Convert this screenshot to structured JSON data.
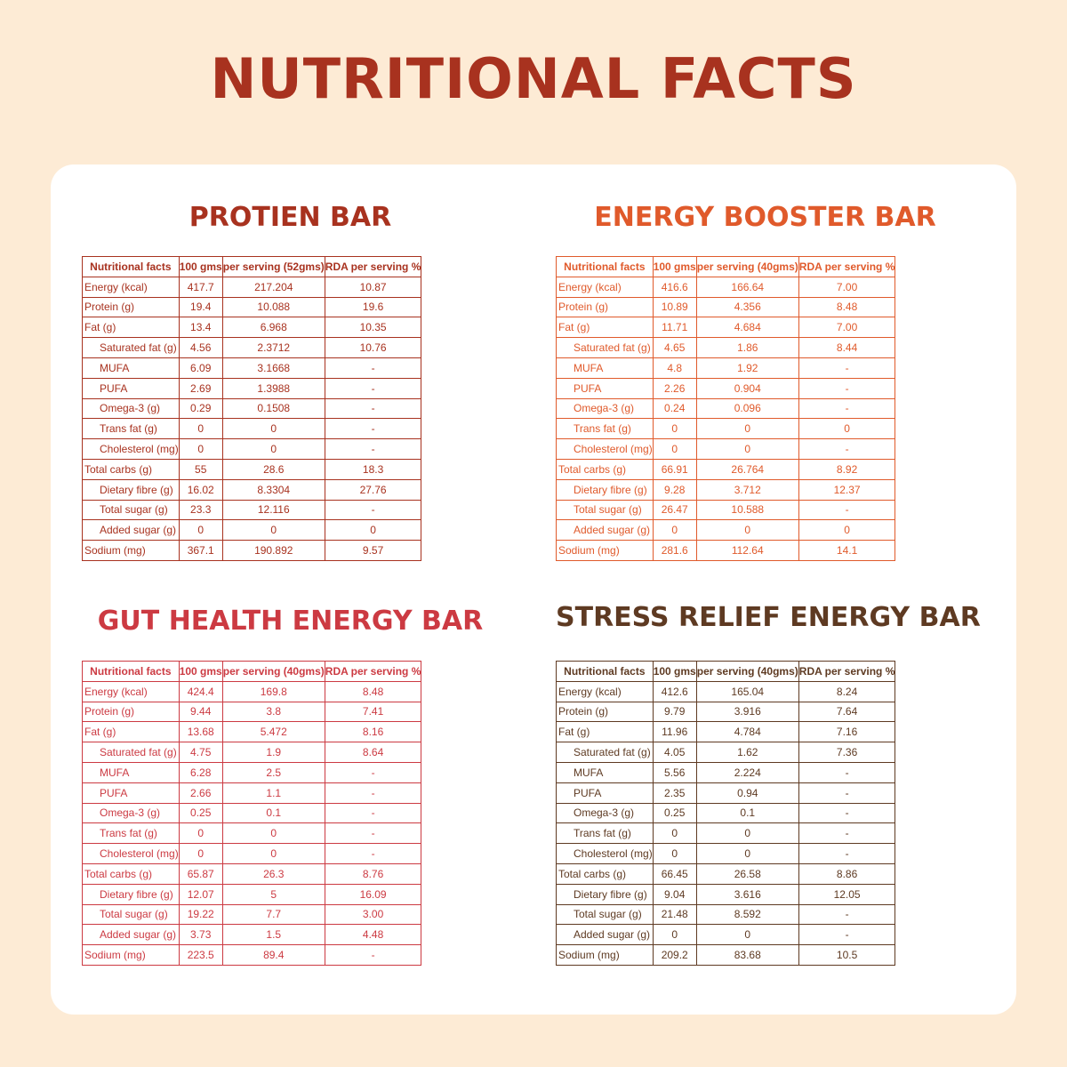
{
  "title": "NUTRITIONAL FACTS",
  "headers": [
    "Nutritional facts",
    "100 gms"
  ],
  "panels": [
    {
      "key": "protein",
      "title": "PROTIEN BAR",
      "color": "#a8321f",
      "serving_header": "per serving (52gms)",
      "rda_header": "RDA per serving %",
      "rows": [
        [
          "Energy (kcal)",
          "417.7",
          "217.204",
          "10.87",
          false
        ],
        [
          "Protein (g)",
          "19.4",
          "10.088",
          "19.6",
          false
        ],
        [
          "Fat (g)",
          "13.4",
          "6.968",
          "10.35",
          false
        ],
        [
          "Saturated fat (g)",
          "4.56",
          "2.3712",
          "10.76",
          true
        ],
        [
          "MUFA",
          "6.09",
          "3.1668",
          "-",
          true
        ],
        [
          "PUFA",
          "2.69",
          "1.3988",
          "-",
          true
        ],
        [
          "Omega-3 (g)",
          "0.29",
          "0.1508",
          "-",
          true
        ],
        [
          "Trans fat (g)",
          "0",
          "0",
          "-",
          true
        ],
        [
          "Cholesterol (mg)",
          "0",
          "0",
          "-",
          true
        ],
        [
          "Total carbs (g)",
          "55",
          "28.6",
          "18.3",
          false
        ],
        [
          "Dietary fibre (g)",
          "16.02",
          "8.3304",
          "27.76",
          true
        ],
        [
          "Total sugar (g)",
          "23.3",
          "12.116",
          "-",
          true
        ],
        [
          "Added sugar (g)",
          "0",
          "0",
          "0",
          true
        ],
        [
          "Sodium (mg)",
          "367.1",
          "190.892",
          "9.57",
          false
        ]
      ]
    },
    {
      "key": "energy",
      "title": "ENERGY BOOSTER BAR",
      "color": "#e05a2b",
      "serving_header": "per serving (40gms)",
      "rda_header": "RDA per serving %",
      "rows": [
        [
          "Energy (kcal)",
          "416.6",
          "166.64",
          "7.00",
          false
        ],
        [
          "Protein (g)",
          "10.89",
          "4.356",
          "8.48",
          false
        ],
        [
          "Fat (g)",
          "11.71",
          "4.684",
          "7.00",
          false
        ],
        [
          "Saturated fat (g)",
          "4.65",
          "1.86",
          "8.44",
          true
        ],
        [
          "MUFA",
          "4.8",
          "1.92",
          "-",
          true
        ],
        [
          "PUFA",
          "2.26",
          "0.904",
          "-",
          true
        ],
        [
          "Omega-3 (g)",
          "0.24",
          "0.096",
          "-",
          true
        ],
        [
          "Trans fat (g)",
          "0",
          "0",
          "0",
          true
        ],
        [
          "Cholesterol (mg)",
          "0",
          "0",
          "-",
          true
        ],
        [
          "Total carbs (g)",
          "66.91",
          "26.764",
          "8.92",
          false
        ],
        [
          "Dietary fibre (g)",
          "9.28",
          "3.712",
          "12.37",
          true
        ],
        [
          "Total sugar (g)",
          "26.47",
          "10.588",
          "-",
          true
        ],
        [
          "Added sugar (g)",
          "0",
          "0",
          "0",
          true
        ],
        [
          "Sodium (mg)",
          "281.6",
          "112.64",
          "14.1",
          false
        ]
      ]
    },
    {
      "key": "gut",
      "title": "GUT HEALTH ENERGY BAR",
      "color": "#cc3a42",
      "serving_header": "per serving (40gms)",
      "rda_header": "RDA per serving %",
      "rows": [
        [
          "Energy (kcal)",
          "424.4",
          "169.8",
          "8.48",
          false
        ],
        [
          "Protein (g)",
          "9.44",
          "3.8",
          "7.41",
          false
        ],
        [
          "Fat (g)",
          "13.68",
          "5.472",
          "8.16",
          false
        ],
        [
          "Saturated fat (g)",
          "4.75",
          "1.9",
          "8.64",
          true
        ],
        [
          "MUFA",
          "6.28",
          "2.5",
          "-",
          true
        ],
        [
          "PUFA",
          "2.66",
          "1.1",
          "-",
          true
        ],
        [
          "Omega-3 (g)",
          "0.25",
          "0.1",
          "-",
          true
        ],
        [
          "Trans fat (g)",
          "0",
          "0",
          "-",
          true
        ],
        [
          "Cholesterol (mg)",
          "0",
          "0",
          "-",
          true
        ],
        [
          "Total carbs (g)",
          "65.87",
          "26.3",
          "8.76",
          false
        ],
        [
          "Dietary fibre (g)",
          "12.07",
          "5",
          "16.09",
          true
        ],
        [
          "Total sugar (g)",
          "19.22",
          "7.7",
          "3.00",
          true
        ],
        [
          "Added sugar (g)",
          "3.73",
          "1.5",
          "4.48",
          true
        ],
        [
          "Sodium (mg)",
          "223.5",
          "89.4",
          "-",
          false
        ]
      ]
    },
    {
      "key": "stress",
      "title": "STRESS RELIEF ENERGY BAR",
      "color": "#5e3a22",
      "serving_header": "per serving (40gms)",
      "rda_header": "RDA per serving %",
      "rows": [
        [
          "Energy (kcal)",
          "412.6",
          "165.04",
          "8.24",
          false
        ],
        [
          "Protein (g)",
          "9.79",
          "3.916",
          "7.64",
          false
        ],
        [
          "Fat (g)",
          "11.96",
          "4.784",
          "7.16",
          false
        ],
        [
          "Saturated fat (g)",
          "4.05",
          "1.62",
          "7.36",
          true
        ],
        [
          "MUFA",
          "5.56",
          "2.224",
          "-",
          true
        ],
        [
          "PUFA",
          "2.35",
          "0.94",
          "-",
          true
        ],
        [
          "Omega-3 (g)",
          "0.25",
          "0.1",
          "-",
          true
        ],
        [
          "Trans fat (g)",
          "0",
          "0",
          "-",
          true
        ],
        [
          "Cholesterol (mg)",
          "0",
          "0",
          "-",
          true
        ],
        [
          "Total carbs (g)",
          "66.45",
          "26.58",
          "8.86",
          false
        ],
        [
          "Dietary fibre (g)",
          "9.04",
          "3.616",
          "12.05",
          true
        ],
        [
          "Total sugar (g)",
          "21.48",
          "8.592",
          "-",
          true
        ],
        [
          "Added sugar (g)",
          "0",
          "0",
          "-",
          true
        ],
        [
          "Sodium (mg)",
          "209.2",
          "83.68",
          "10.5",
          false
        ]
      ]
    }
  ]
}
